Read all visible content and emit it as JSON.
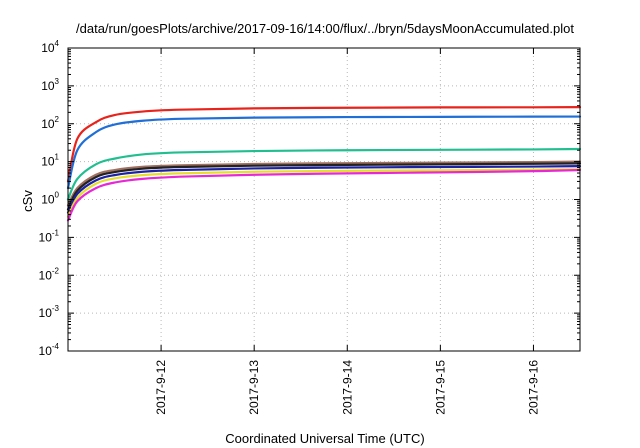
{
  "chart_data": {
    "type": "line",
    "title": "/data/run/goesPlots/archive/2017-09-16/14:00/flux/../bryn/5daysMoonAccumulated.plot",
    "xlabel": "Coordinated Universal Time (UTC)",
    "ylabel": "cSv",
    "yscale": "log",
    "ylim": [
      0.0001,
      10000
    ],
    "x_range_days": [
      0.0,
      5.5
    ],
    "grid": true,
    "x_ticks": [
      {
        "label": "2017-9-12",
        "day": 1.0
      },
      {
        "label": "2017-9-13",
        "day": 2.0
      },
      {
        "label": "2017-9-14",
        "day": 3.0
      },
      {
        "label": "2017-9-15",
        "day": 4.0
      },
      {
        "label": "2017-9-16",
        "day": 5.0
      }
    ],
    "y_ticks": [
      {
        "base": "10",
        "exp": "4",
        "value": 10000
      },
      {
        "base": "10",
        "exp": "3",
        "value": 1000
      },
      {
        "base": "10",
        "exp": "2",
        "value": 100
      },
      {
        "base": "10",
        "exp": "1",
        "value": 10
      },
      {
        "base": "10",
        "exp": "0",
        "value": 1
      },
      {
        "base": "10",
        "exp": "-1",
        "value": 0.1
      },
      {
        "base": "10",
        "exp": "-2",
        "value": 0.01
      },
      {
        "base": "10",
        "exp": "-3",
        "value": 0.001
      },
      {
        "base": "10",
        "exp": "-4",
        "value": 0.0001
      }
    ],
    "series": [
      {
        "color": "#e8231b",
        "points": [
          [
            0.0,
            3.0
          ],
          [
            0.1,
            40
          ],
          [
            0.3,
            110
          ],
          [
            0.5,
            170
          ],
          [
            0.8,
            210
          ],
          [
            1.2,
            235
          ],
          [
            2.0,
            255
          ],
          [
            3.0,
            265
          ],
          [
            4.0,
            270
          ],
          [
            5.0,
            272
          ],
          [
            5.5,
            275
          ]
        ]
      },
      {
        "color": "#1f6fd6",
        "points": [
          [
            0.0,
            2.0
          ],
          [
            0.1,
            20
          ],
          [
            0.3,
            60
          ],
          [
            0.5,
            95
          ],
          [
            0.8,
            120
          ],
          [
            1.2,
            135
          ],
          [
            2.0,
            145
          ],
          [
            3.0,
            150
          ],
          [
            4.0,
            152
          ],
          [
            5.0,
            154
          ],
          [
            5.5,
            155
          ]
        ]
      },
      {
        "color": "#21bf8f",
        "points": [
          [
            0.0,
            1.0
          ],
          [
            0.1,
            3.5
          ],
          [
            0.3,
            8.5
          ],
          [
            0.5,
            12
          ],
          [
            0.8,
            15.5
          ],
          [
            1.2,
            17.5
          ],
          [
            2.0,
            19
          ],
          [
            3.0,
            20
          ],
          [
            4.0,
            20.5
          ],
          [
            5.0,
            21
          ],
          [
            5.5,
            21.5
          ]
        ]
      },
      {
        "color": "#a07060",
        "points": [
          [
            0.0,
            0.7
          ],
          [
            0.1,
            2.0
          ],
          [
            0.3,
            4.5
          ],
          [
            0.5,
            6.0
          ],
          [
            0.8,
            7.3
          ],
          [
            1.2,
            8.0
          ],
          [
            2.0,
            8.7
          ],
          [
            3.0,
            9.1
          ],
          [
            4.0,
            9.4
          ],
          [
            5.0,
            9.7
          ],
          [
            5.5,
            10
          ]
        ]
      },
      {
        "color": "#222222",
        "points": [
          [
            0.0,
            0.55
          ],
          [
            0.1,
            1.7
          ],
          [
            0.3,
            3.9
          ],
          [
            0.5,
            5.3
          ],
          [
            0.8,
            6.5
          ],
          [
            1.2,
            7.2
          ],
          [
            2.0,
            7.8
          ],
          [
            3.0,
            8.2
          ],
          [
            4.0,
            8.5
          ],
          [
            5.0,
            8.8
          ],
          [
            5.5,
            9.0
          ]
        ]
      },
      {
        "color": "#1c22a8",
        "points": [
          [
            0.0,
            0.45
          ],
          [
            0.1,
            1.4
          ],
          [
            0.3,
            3.2
          ],
          [
            0.5,
            4.4
          ],
          [
            0.8,
            5.4
          ],
          [
            1.2,
            6.0
          ],
          [
            2.0,
            6.6
          ],
          [
            3.0,
            7.0
          ],
          [
            4.0,
            7.2
          ],
          [
            5.0,
            7.4
          ],
          [
            5.5,
            7.6
          ]
        ]
      },
      {
        "color": "#e6df2a",
        "points": [
          [
            0.0,
            0.35
          ],
          [
            0.1,
            1.1
          ],
          [
            0.3,
            2.6
          ],
          [
            0.5,
            3.6
          ],
          [
            0.8,
            4.4
          ],
          [
            1.2,
            4.9
          ],
          [
            2.0,
            5.4
          ],
          [
            3.0,
            5.7
          ],
          [
            4.0,
            5.9
          ],
          [
            5.0,
            6.1
          ],
          [
            5.5,
            6.3
          ]
        ]
      },
      {
        "color": "#e629d6",
        "points": [
          [
            0.0,
            0.28
          ],
          [
            0.1,
            0.9
          ],
          [
            0.3,
            2.0
          ],
          [
            0.5,
            2.8
          ],
          [
            0.8,
            3.5
          ],
          [
            1.2,
            4.0
          ],
          [
            2.0,
            4.5
          ],
          [
            3.0,
            4.9
          ],
          [
            4.0,
            5.2
          ],
          [
            5.0,
            5.6
          ],
          [
            5.5,
            6.0
          ]
        ]
      }
    ]
  }
}
